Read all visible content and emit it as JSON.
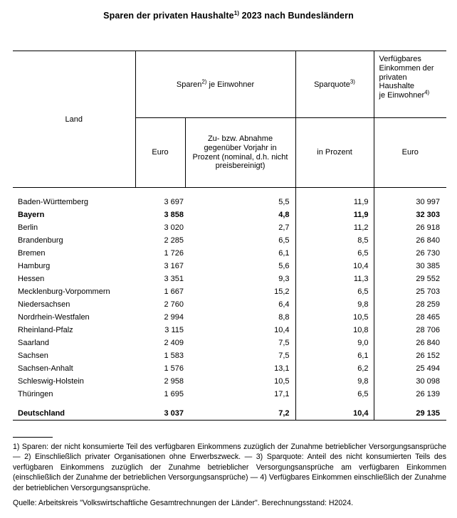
{
  "title": {
    "part1": "Sparen der privaten Haushalte",
    "sup": "1)",
    "part2": " 2023 nach Bundesländern"
  },
  "table": {
    "header": {
      "land": "Land",
      "sparen_text": "Sparen",
      "sparen_sup": "2)",
      "sparen_rest": " je Einwohner",
      "sparquote_text": "Sparquote",
      "sparquote_sup": "3)",
      "verfuegbar_line1": "Verfügbares Einkommen der privaten Haushalte",
      "verfuegbar_line2": "je Einwohner",
      "verfuegbar_sup": "4)",
      "sub_euro1": "Euro",
      "sub_zu": "Zu- bzw. Abnahme gegenüber Vorjahr in Prozent (nominal, d.h. nicht preisbereinigt)",
      "sub_prozent": "in Prozent",
      "sub_euro2": "Euro"
    },
    "rows": [
      {
        "land": "Baden-Württemberg",
        "euro": "3 697",
        "zu": "5,5",
        "quote": "11,9",
        "einkommen": "30 997",
        "bold": false,
        "total": false
      },
      {
        "land": "Bayern",
        "euro": "3 858",
        "zu": "4,8",
        "quote": "11,9",
        "einkommen": "32 303",
        "bold": true,
        "total": false
      },
      {
        "land": "Berlin",
        "euro": "3 020",
        "zu": "2,7",
        "quote": "11,2",
        "einkommen": "26 918",
        "bold": false,
        "total": false
      },
      {
        "land": "Brandenburg",
        "euro": "2 285",
        "zu": "6,5",
        "quote": "8,5",
        "einkommen": "26 840",
        "bold": false,
        "total": false
      },
      {
        "land": "Bremen",
        "euro": "1 726",
        "zu": "6,1",
        "quote": "6,5",
        "einkommen": "26 730",
        "bold": false,
        "total": false
      },
      {
        "land": "Hamburg",
        "euro": "3 167",
        "zu": "5,6",
        "quote": "10,4",
        "einkommen": "30 385",
        "bold": false,
        "total": false
      },
      {
        "land": "Hessen",
        "euro": "3 351",
        "zu": "9,3",
        "quote": "11,3",
        "einkommen": "29 552",
        "bold": false,
        "total": false
      },
      {
        "land": "Mecklenburg-Vorpommern",
        "euro": "1 667",
        "zu": "15,2",
        "quote": "6,5",
        "einkommen": "25 703",
        "bold": false,
        "total": false
      },
      {
        "land": "Niedersachsen",
        "euro": "2 760",
        "zu": "6,4",
        "quote": "9,8",
        "einkommen": "28 259",
        "bold": false,
        "total": false
      },
      {
        "land": "Nordrhein-Westfalen",
        "euro": "2 994",
        "zu": "8,8",
        "quote": "10,5",
        "einkommen": "28 465",
        "bold": false,
        "total": false
      },
      {
        "land": "Rheinland-Pfalz",
        "euro": "3 115",
        "zu": "10,4",
        "quote": "10,8",
        "einkommen": "28 706",
        "bold": false,
        "total": false
      },
      {
        "land": "Saarland",
        "euro": "2 409",
        "zu": "7,5",
        "quote": "9,0",
        "einkommen": "26 840",
        "bold": false,
        "total": false
      },
      {
        "land": "Sachsen",
        "euro": "1 583",
        "zu": "7,5",
        "quote": "6,1",
        "einkommen": "26 152",
        "bold": false,
        "total": false
      },
      {
        "land": "Sachsen-Anhalt",
        "euro": "1 576",
        "zu": "13,1",
        "quote": "6,2",
        "einkommen": "25 494",
        "bold": false,
        "total": false
      },
      {
        "land": "Schleswig-Holstein",
        "euro": "2 958",
        "zu": "10,5",
        "quote": "9,8",
        "einkommen": "30 098",
        "bold": false,
        "total": false
      },
      {
        "land": "Thüringen",
        "euro": "1 695",
        "zu": "17,1",
        "quote": "6,5",
        "einkommen": "26 139",
        "bold": false,
        "total": false
      },
      {
        "land": "Deutschland",
        "euro": "3 037",
        "zu": "7,2",
        "quote": "10,4",
        "einkommen": "29 135",
        "bold": true,
        "total": true
      }
    ]
  },
  "footnotes": {
    "notes": "1) Sparen: der nicht konsumierte Teil des verfügbaren Einkommens zuzüglich der Zunahme betrieblicher Versorgungsansprüche — 2) Einschließlich privater Organisationen ohne Erwerbszweck. — 3) Sparquote: Anteil des nicht konsumierten Teils des verfügbaren Einkommens zuzüglich der Zunahme betrieblicher Versorgungsansprüche am verfügbaren Einkommen (einschließlich der Zunahme der betrieblichen Versorgungsansprüche) — 4) Verfügbares Einkommen einschließlich der Zunahme der betrieblichen Versorgungsansprüche.",
    "source": "Quelle: Arbeitskreis \"Volkswirtschaftliche Gesamtrechnungen der Länder\". Berechnungsstand: H2024."
  },
  "colors": {
    "text": "#000000",
    "background": "#ffffff",
    "border": "#000000"
  }
}
